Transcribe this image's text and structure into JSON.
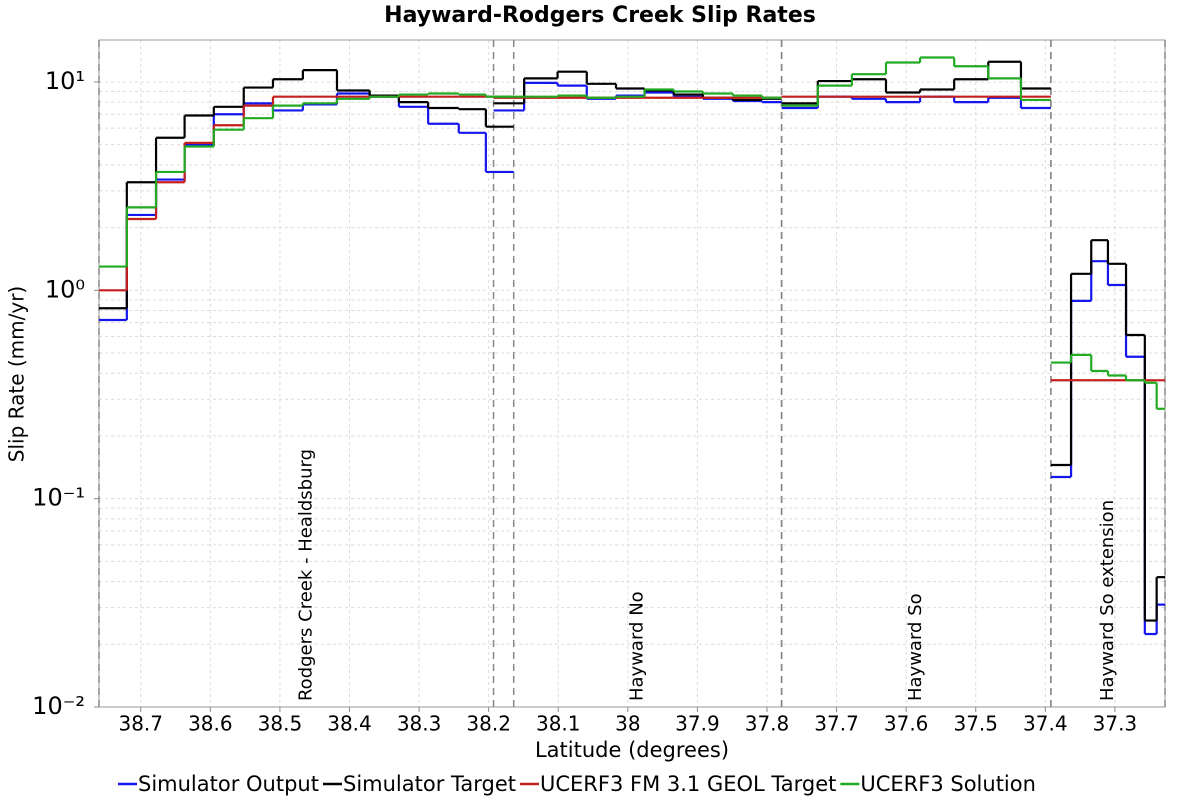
{
  "chart_data": {
    "type": "step",
    "title": "Hayward-Rodgers Creek Slip Rates",
    "x_label": "Latitude (degrees)",
    "y_label": "Slip Rate (mm/yr)",
    "xlim": [
      38.76,
      37.228
    ],
    "xticks": [
      38.7,
      38.6,
      38.5,
      38.4,
      38.3,
      38.2,
      38.1,
      38,
      37.9,
      37.8,
      37.7,
      37.6,
      37.5,
      37.4,
      37.3
    ],
    "ylim": [
      0.01,
      15.9
    ],
    "log_y": true,
    "yticks": [
      {
        "value": 0.01,
        "label": "10⁻²"
      },
      {
        "value": 0.1,
        "label": "10⁻¹"
      },
      {
        "value": 1,
        "label": "10⁰"
      },
      {
        "value": 10,
        "label": "10¹"
      }
    ],
    "grid": true,
    "legend": "bottom",
    "sections": [
      {
        "label": "Rodgers Creek - Healdsburg",
        "bins": [
          38.76,
          38.72,
          38.678,
          38.637,
          38.595,
          38.552,
          38.51,
          38.467,
          38.418,
          38.371,
          38.329,
          38.287,
          38.243,
          38.204,
          38.164
        ]
      },
      {
        "label": "Hayward No",
        "bins": [
          38.193,
          38.149,
          38.101,
          38.059,
          38.017,
          37.976,
          37.934,
          37.892,
          37.849,
          37.807,
          37.779
        ]
      },
      {
        "label": "Hayward So",
        "bins": [
          37.779,
          37.727,
          37.678,
          37.629,
          37.58,
          37.531,
          37.482,
          37.435,
          37.392
        ]
      },
      {
        "label": "Hayward So extension",
        "bins": [
          37.392,
          37.363,
          37.334,
          37.31,
          37.284,
          37.257,
          37.24,
          37.228
        ]
      }
    ],
    "series": [
      {
        "name": "Simulator Output",
        "color": "#1515ee",
        "values": [
          [
            0.72,
            2.3,
            3.4,
            5.0,
            7.0,
            7.9,
            7.3,
            7.8,
            8.8,
            8.5,
            7.6,
            6.3,
            5.7,
            3.7
          ],
          [
            7.3,
            9.9,
            9.6,
            8.3,
            8.6,
            8.9,
            8.5,
            8.3,
            8.1,
            8.0
          ],
          [
            7.5,
            8.5,
            8.3,
            8.0,
            8.5,
            8.0,
            8.4,
            7.5
          ],
          [
            0.127,
            0.89,
            1.38,
            1.06,
            0.48,
            0.0224,
            0.031
          ]
        ]
      },
      {
        "name": "Simulator Target",
        "color": "#000000",
        "values": [
          [
            0.82,
            3.3,
            5.4,
            6.9,
            7.6,
            9.4,
            10.3,
            11.4,
            9.1,
            8.6,
            8.0,
            7.5,
            7.4,
            6.1
          ],
          [
            7.9,
            10.4,
            11.2,
            9.8,
            9.3,
            9.1,
            8.7,
            8.4,
            8.2,
            8.3
          ],
          [
            7.9,
            10.1,
            10.3,
            8.9,
            9.2,
            10.3,
            12.5,
            9.3
          ],
          [
            0.145,
            1.2,
            1.74,
            1.34,
            0.61,
            0.026,
            0.042
          ]
        ]
      },
      {
        "name": "UCERF3 FM 3.1 GEOL Target",
        "color": "#c41e1e",
        "values": [
          [
            1.0,
            2.2,
            3.3,
            5.1,
            6.2,
            7.7,
            8.5,
            8.5,
            8.5,
            8.5,
            8.5,
            8.5,
            8.5,
            8.5
          ],
          [
            8.4,
            8.4,
            8.4,
            8.4,
            8.4,
            8.4,
            8.4,
            8.4,
            8.4,
            8.4
          ],
          [
            8.5,
            8.5,
            8.5,
            8.5,
            8.5,
            8.5,
            8.5,
            8.5
          ],
          [
            0.37,
            0.37,
            0.37,
            0.37,
            0.37,
            0.37,
            0.37
          ]
        ]
      },
      {
        "name": "UCERF3 Solution",
        "color": "#22aa22",
        "values": [
          [
            1.3,
            2.5,
            3.7,
            4.9,
            5.9,
            6.7,
            7.7,
            7.9,
            8.3,
            8.5,
            8.7,
            8.8,
            8.7,
            8.5
          ],
          [
            8.5,
            8.5,
            8.6,
            8.4,
            8.5,
            9.2,
            9.0,
            8.8,
            8.6,
            8.4
          ],
          [
            7.7,
            9.6,
            10.9,
            12.4,
            13.1,
            11.9,
            10.4,
            8.2
          ],
          [
            0.45,
            0.49,
            0.41,
            0.39,
            0.37,
            0.36,
            0.27
          ]
        ]
      }
    ]
  }
}
